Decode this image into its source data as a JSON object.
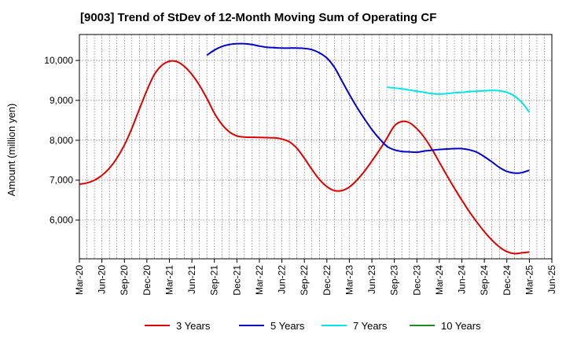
{
  "chart_data": {
    "type": "line",
    "title": "[9003]  Trend of StDev of 12-Month Moving Sum of Operating CF",
    "xlabel": "",
    "ylabel": "Amount (million yen)",
    "x_ticks": [
      "Mar-20",
      "Jun-20",
      "Sep-20",
      "Dec-20",
      "Mar-21",
      "Jun-21",
      "Sep-21",
      "Dec-21",
      "Mar-22",
      "Jun-22",
      "Sep-22",
      "Dec-22",
      "Mar-23",
      "Jun-23",
      "Sep-23",
      "Dec-23",
      "Mar-24",
      "Jun-24",
      "Sep-24",
      "Dec-24",
      "Mar-25",
      "Jun-25"
    ],
    "x_range": [
      "2020-03",
      "2025-06"
    ],
    "y_ticks": [
      6000,
      7000,
      8000,
      9000,
      10000
    ],
    "y_tick_labels": [
      "6,000",
      "7,000",
      "8,000",
      "9,000",
      "10,000"
    ],
    "ylim": [
      5030,
      10650
    ],
    "grid": true,
    "legend_position": "bottom",
    "series": [
      {
        "name": "3 Years",
        "color": "#dd0000",
        "x": [
          "2020-03",
          "2020-04",
          "2020-05",
          "2020-06",
          "2020-07",
          "2020-08",
          "2020-09",
          "2020-10",
          "2020-11",
          "2020-12",
          "2021-01",
          "2021-02",
          "2021-03",
          "2021-04",
          "2021-05",
          "2021-06",
          "2021-07",
          "2021-08",
          "2021-09",
          "2021-10",
          "2021-11",
          "2021-12",
          "2022-01",
          "2022-02",
          "2022-03",
          "2022-04",
          "2022-05",
          "2022-06",
          "2022-07",
          "2022-08",
          "2022-09",
          "2022-10",
          "2022-11",
          "2022-12",
          "2023-01",
          "2023-02",
          "2023-03",
          "2023-04",
          "2023-05",
          "2023-06",
          "2023-07",
          "2023-08",
          "2023-09",
          "2023-10",
          "2023-11",
          "2023-12",
          "2024-01",
          "2024-02",
          "2024-03",
          "2024-04",
          "2024-05",
          "2024-06",
          "2024-07",
          "2024-08",
          "2024-09",
          "2024-10",
          "2024-11",
          "2024-12",
          "2025-01",
          "2025-02",
          "2025-03"
        ],
        "values": [
          6900,
          6930,
          7000,
          7120,
          7300,
          7550,
          7880,
          8300,
          8780,
          9250,
          9650,
          9880,
          9980,
          9970,
          9850,
          9650,
          9380,
          9050,
          8680,
          8400,
          8210,
          8110,
          8080,
          8075,
          8070,
          8065,
          8060,
          8030,
          7960,
          7800,
          7550,
          7270,
          7020,
          6840,
          6740,
          6740,
          6830,
          7000,
          7220,
          7480,
          7750,
          8050,
          8360,
          8470,
          8440,
          8290,
          8070,
          7780,
          7450,
          7120,
          6800,
          6500,
          6210,
          5950,
          5710,
          5500,
          5330,
          5210,
          5160,
          5180,
          5200
        ]
      },
      {
        "name": "5 Years",
        "color": "#0000cc",
        "x": [
          "2021-08",
          "2021-09",
          "2021-10",
          "2021-11",
          "2021-12",
          "2022-01",
          "2022-02",
          "2022-03",
          "2022-04",
          "2022-05",
          "2022-06",
          "2022-07",
          "2022-08",
          "2022-09",
          "2022-10",
          "2022-11",
          "2022-12",
          "2023-01",
          "2023-02",
          "2023-03",
          "2023-04",
          "2023-05",
          "2023-06",
          "2023-07",
          "2023-08",
          "2023-09",
          "2023-10",
          "2023-11",
          "2023-12",
          "2024-01",
          "2024-02",
          "2024-03",
          "2024-04",
          "2024-05",
          "2024-06",
          "2024-07",
          "2024-08",
          "2024-09",
          "2024-10",
          "2024-11",
          "2024-12",
          "2025-01",
          "2025-02",
          "2025-03"
        ],
        "values": [
          10130,
          10260,
          10350,
          10400,
          10420,
          10420,
          10400,
          10360,
          10330,
          10320,
          10310,
          10310,
          10310,
          10300,
          10270,
          10190,
          10060,
          9830,
          9490,
          9150,
          8830,
          8540,
          8270,
          8040,
          7850,
          7760,
          7720,
          7710,
          7700,
          7730,
          7750,
          7770,
          7780,
          7790,
          7790,
          7760,
          7700,
          7590,
          7460,
          7320,
          7220,
          7180,
          7190,
          7250
        ]
      },
      {
        "name": "7 Years",
        "color": "#00e5e5",
        "x": [
          "2023-08",
          "2023-09",
          "2023-10",
          "2023-11",
          "2023-12",
          "2024-01",
          "2024-02",
          "2024-03",
          "2024-04",
          "2024-05",
          "2024-06",
          "2024-07",
          "2024-08",
          "2024-09",
          "2024-10",
          "2024-11",
          "2024-12",
          "2025-01",
          "2025-02",
          "2025-03"
        ],
        "values": [
          9330,
          9310,
          9290,
          9260,
          9230,
          9200,
          9170,
          9160,
          9170,
          9190,
          9200,
          9220,
          9230,
          9240,
          9250,
          9240,
          9200,
          9110,
          8950,
          8700
        ]
      },
      {
        "name": "10 Years",
        "color": "#228b22",
        "x": [],
        "values": []
      }
    ]
  }
}
